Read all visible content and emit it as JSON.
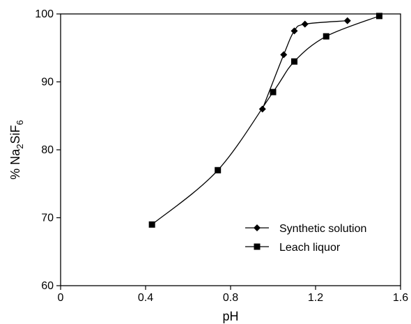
{
  "chart_data": {
    "type": "line",
    "title": "",
    "xlabel": "pH",
    "ylabel_prefix": "% Na",
    "ylabel_sub1": "2",
    "ylabel_mid": "SiF",
    "ylabel_sub2": "6",
    "xlim": [
      0,
      1.6
    ],
    "ylim": [
      60,
      100
    ],
    "x_ticks": [
      0,
      0.4,
      0.8,
      1.2,
      1.6
    ],
    "x_tick_labels": [
      "0",
      "0.4",
      "0.8",
      "1.2",
      "1.6"
    ],
    "y_ticks": [
      60,
      70,
      80,
      90,
      100
    ],
    "y_tick_labels": [
      "60",
      "70",
      "80",
      "90",
      "100"
    ],
    "grid": false,
    "legend_position": "bottom-right",
    "series": [
      {
        "name": "Synthetic solution",
        "marker": "diamond",
        "x": [
          0.95,
          1.05,
          1.1,
          1.15,
          1.35
        ],
        "y": [
          86.0,
          94.0,
          97.5,
          98.5,
          99.0
        ]
      },
      {
        "name": "Leach liquor",
        "marker": "square",
        "x": [
          0.43,
          0.74,
          1.0,
          1.1,
          1.25,
          1.5
        ],
        "y": [
          69.0,
          77.0,
          88.5,
          93.0,
          96.7,
          99.7
        ]
      }
    ]
  }
}
